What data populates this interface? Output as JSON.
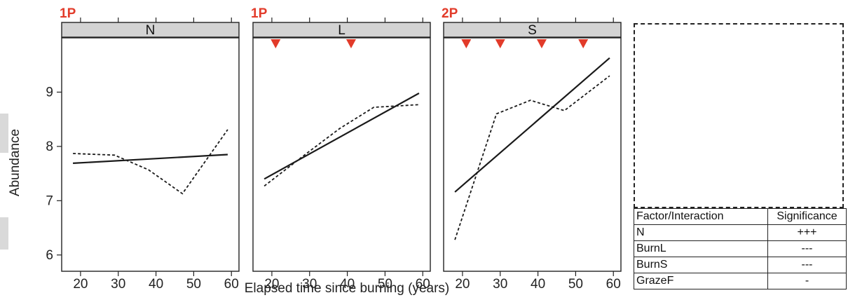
{
  "chart_data": {
    "type": "line",
    "xlabel": "Elapsed time since burning (years)",
    "ylabel": "Abundance",
    "xlim": [
      15,
      62
    ],
    "ylim": [
      5.7,
      10.0
    ],
    "xticks": [
      20,
      30,
      40,
      50,
      60
    ],
    "yticks": [
      6,
      7,
      8,
      9
    ],
    "marker_color": "#e23b2a",
    "panels": [
      {
        "strip": "N",
        "code": "1P",
        "markers": [],
        "series": [
          {
            "style": "dashed",
            "x": [
              18,
              29,
              38,
              47,
              59
            ],
            "y": [
              7.87,
              7.84,
              7.57,
              7.13,
              8.31
            ]
          },
          {
            "style": "solid",
            "x": [
              18,
              59
            ],
            "y": [
              7.69,
              7.85
            ]
          }
        ]
      },
      {
        "strip": "L",
        "code": "1P",
        "markers": [
          21,
          41
        ],
        "series": [
          {
            "style": "dashed",
            "x": [
              18,
              29,
              38,
              47,
              59
            ],
            "y": [
              7.27,
              7.86,
              8.33,
              8.72,
              8.77
            ]
          },
          {
            "style": "solid",
            "x": [
              18,
              59
            ],
            "y": [
              7.4,
              8.98
            ]
          }
        ]
      },
      {
        "strip": "S",
        "code": "2P",
        "markers": [
          21,
          30,
          41,
          52
        ],
        "series": [
          {
            "style": "dashed",
            "x": [
              18,
              29,
              38,
              47,
              59
            ],
            "y": [
              6.28,
              8.6,
              8.85,
              8.66,
              9.3
            ]
          },
          {
            "style": "solid",
            "x": [
              18,
              59
            ],
            "y": [
              7.16,
              9.63
            ]
          }
        ]
      }
    ]
  },
  "table": {
    "headers": [
      "Factor/Interaction",
      "Significance"
    ],
    "rows": [
      [
        "N",
        "+++"
      ],
      [
        "BurnL",
        "---"
      ],
      [
        "BurnS",
        "---"
      ],
      [
        "GrazeF",
        "-"
      ]
    ]
  }
}
